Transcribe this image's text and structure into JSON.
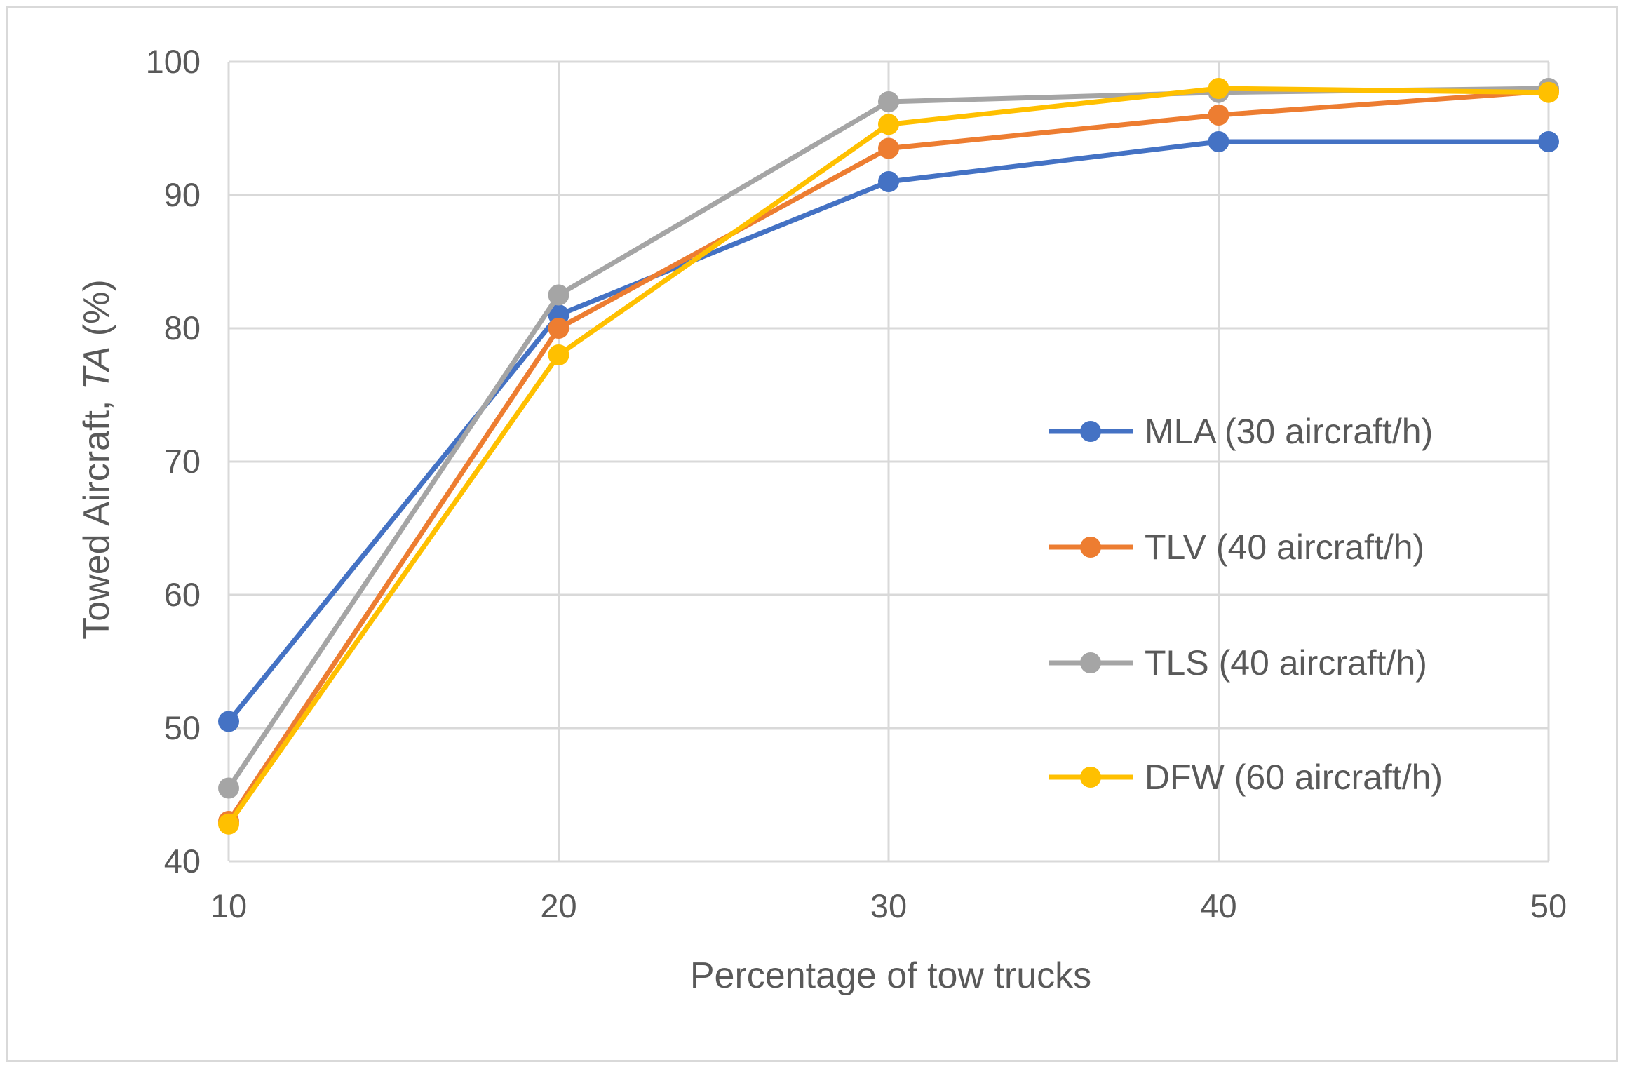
{
  "chart_data": {
    "type": "line",
    "title": "",
    "xlabel": "Percentage of tow trucks",
    "ylabel_prefix": "Towed Aircraft, ",
    "ylabel_italic": "TA",
    "ylabel_suffix": " (%)",
    "x": [
      10,
      20,
      30,
      40,
      50
    ],
    "x_tick_labels": [
      "10",
      "20",
      "30",
      "40",
      "50"
    ],
    "y_tick_labels": [
      "40",
      "50",
      "60",
      "70",
      "80",
      "90",
      "100"
    ],
    "y_ticks": [
      40,
      50,
      60,
      70,
      80,
      90,
      100
    ],
    "xlim": [
      10,
      50
    ],
    "ylim": [
      40,
      100
    ],
    "grid": true,
    "legend_position": "right",
    "series": [
      {
        "name": "MLA (30 aircraft/h)",
        "color": "#4472c4",
        "values": [
          50.5,
          81.0,
          91.0,
          94.0,
          94.0
        ]
      },
      {
        "name": "TLV (40 aircraft/h)",
        "color": "#ed7d31",
        "values": [
          43.0,
          80.0,
          93.5,
          96.0,
          97.8
        ]
      },
      {
        "name": "TLS (40 aircraft/h)",
        "color": "#a5a5a5",
        "values": [
          45.5,
          82.5,
          97.0,
          97.7,
          98.0
        ]
      },
      {
        "name": "DFW (60 aircraft/h)",
        "color": "#ffc000",
        "values": [
          42.8,
          78.0,
          95.3,
          98.0,
          97.7
        ]
      }
    ]
  }
}
